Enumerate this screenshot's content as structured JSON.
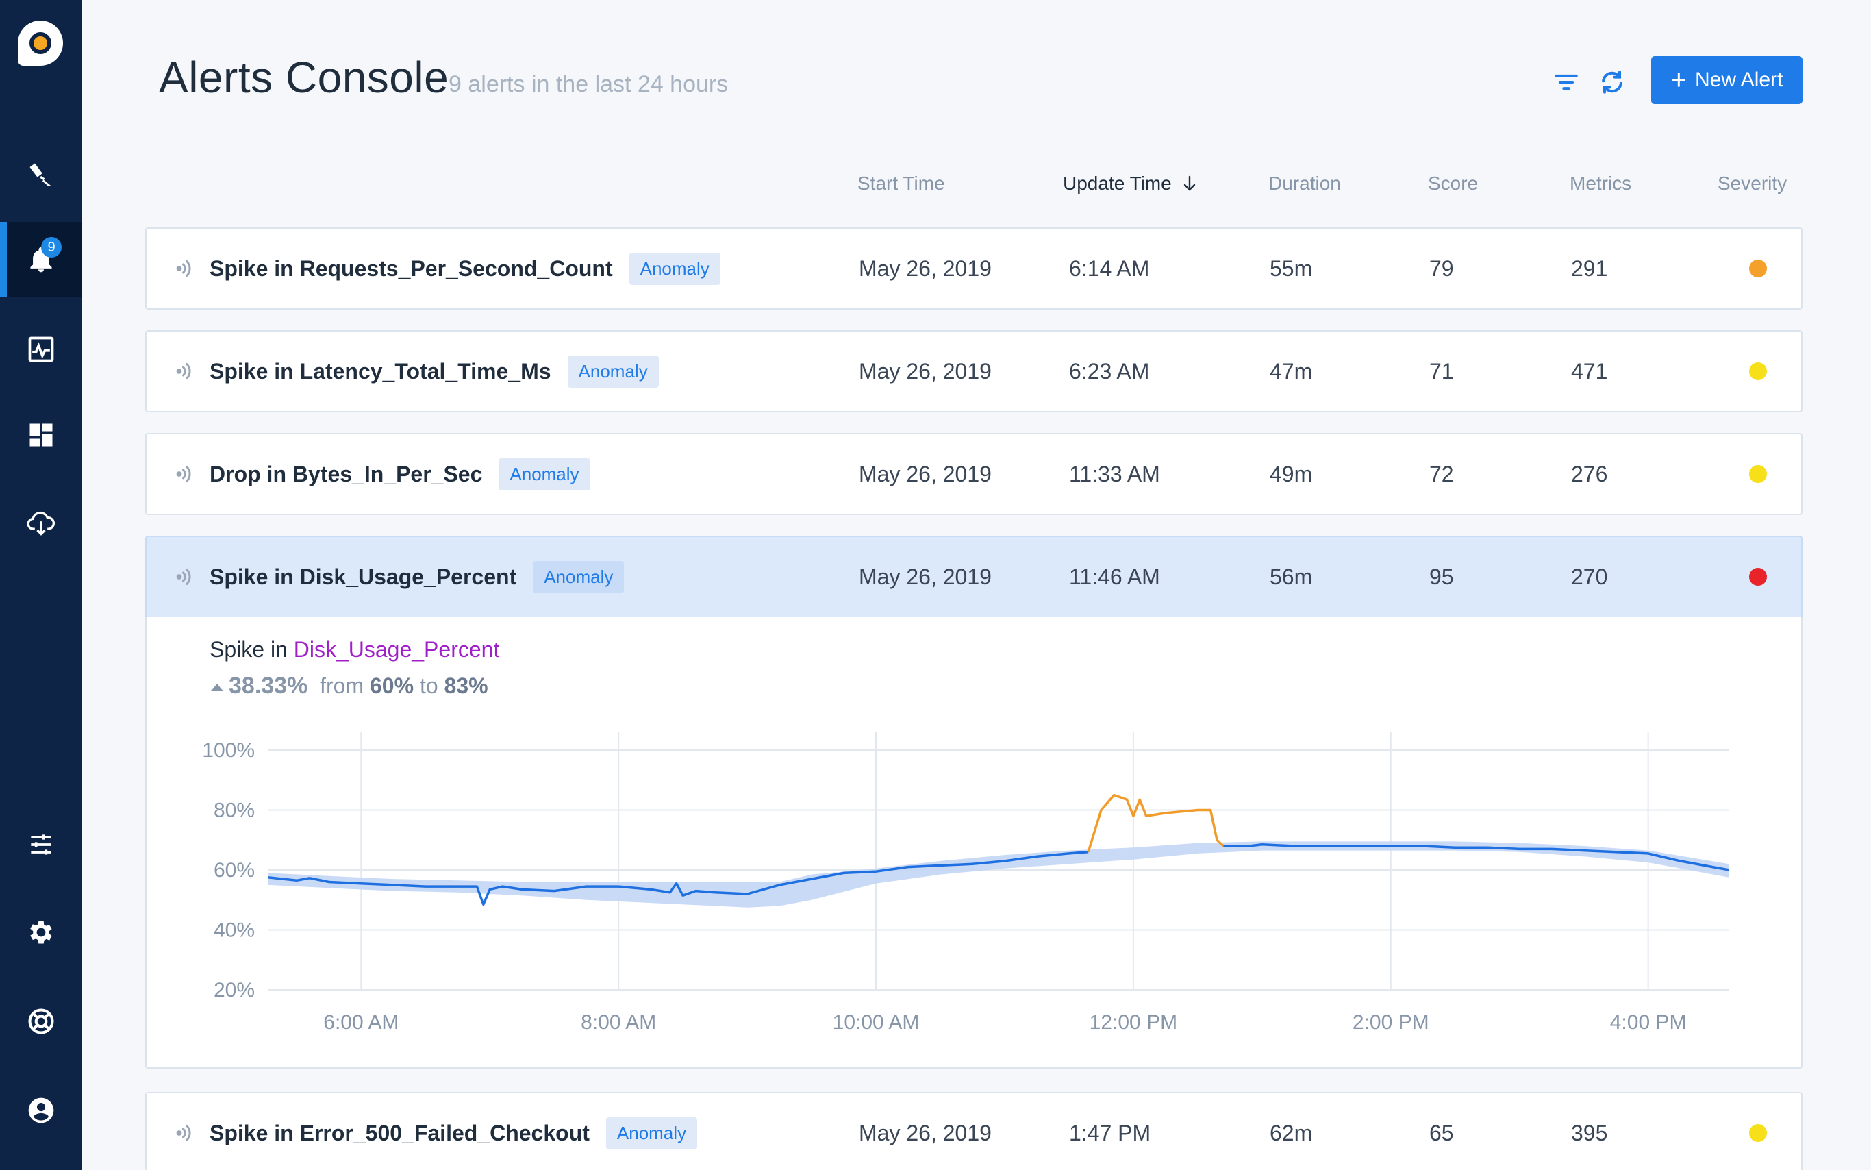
{
  "app": {
    "title": "Alerts Console",
    "subtitle": "9 alerts in the last 24 hours",
    "new_alert_label": "New Alert",
    "accent_color": "#1e7be7"
  },
  "sidebar": {
    "badge_count": "9",
    "items": [
      {
        "name": "explore",
        "icon": "telescope-icon"
      },
      {
        "name": "alerts",
        "icon": "bell-icon",
        "active": true
      },
      {
        "name": "metrics",
        "icon": "chart-icon"
      },
      {
        "name": "dashboards",
        "icon": "dashboard-icon"
      },
      {
        "name": "data-sources",
        "icon": "cloud-download-icon"
      },
      {
        "name": "controls",
        "icon": "sliders-icon"
      },
      {
        "name": "settings",
        "icon": "gear-icon"
      },
      {
        "name": "support",
        "icon": "lifebuoy-icon"
      },
      {
        "name": "profile",
        "icon": "user-icon"
      }
    ]
  },
  "columns": {
    "start_time": "Start Time",
    "update_time": "Update Time",
    "duration": "Duration",
    "score": "Score",
    "metrics": "Metrics",
    "severity": "Severity"
  },
  "alerts": [
    {
      "name": "Spike in Requests_Per_Second_Count",
      "badge": "Anomaly",
      "start": "May 26, 2019",
      "update": "6:14 AM",
      "duration": "55m",
      "score": "79",
      "metrics": "291",
      "severity": "#f5a02a"
    },
    {
      "name": "Spike in Latency_Total_Time_Ms",
      "badge": "Anomaly",
      "start": "May 26, 2019",
      "update": "6:23 AM",
      "duration": "47m",
      "score": "71",
      "metrics": "471",
      "severity": "#f7e01a"
    },
    {
      "name": "Drop in Bytes_In_Per_Sec",
      "badge": "Anomaly",
      "start": "May 26, 2019",
      "update": "11:33 AM",
      "duration": "49m",
      "score": "72",
      "metrics": "276",
      "severity": "#f7e01a"
    },
    {
      "name": "Spike in Disk_Usage_Percent",
      "badge": "Anomaly",
      "start": "May 26, 2019",
      "update": "11:46 AM",
      "duration": "56m",
      "score": "95",
      "metrics": "270",
      "severity": "#e8232a",
      "selected": true
    },
    {
      "name": "Spike in Error_500_Failed_Checkout",
      "badge": "Anomaly",
      "start": "May 26, 2019",
      "update": "1:47 PM",
      "duration": "62m",
      "score": "65",
      "metrics": "395",
      "severity": "#f7e01a"
    }
  ],
  "detail": {
    "prefix": "Spike in",
    "metric": "Disk_Usage_Percent",
    "change_pct": "38.33%",
    "from_word": "from",
    "from_val": "60%",
    "to_word": "to",
    "to_val": "83%"
  },
  "chart_data": {
    "type": "line",
    "y_ticks": [
      "100%",
      "80%",
      "60%",
      "40%",
      "20%"
    ],
    "x_ticks": [
      "6:00 AM",
      "8:00 AM",
      "10:00 AM",
      "12:00 PM",
      "2:00 PM",
      "4:00 PM"
    ],
    "ylim": [
      20,
      100
    ],
    "xlim_hours": [
      5.28,
      16.63
    ],
    "grid": true,
    "colors": {
      "normal": "#1e6fe0",
      "band": "#c3d6f5",
      "anomaly": "#f09b2a"
    },
    "series": [
      {
        "role": "normal",
        "x": [
          5.28,
          5.5,
          5.6,
          5.75,
          6.0,
          6.25,
          6.5,
          6.75,
          6.9,
          6.95,
          7.0,
          7.1,
          7.25,
          7.5,
          7.75,
          8.0,
          8.25,
          8.4,
          8.45,
          8.5,
          8.6,
          8.75,
          9.0,
          9.25,
          9.5,
          9.75,
          10.0,
          10.25,
          10.5,
          10.75,
          11.0,
          11.25,
          11.5,
          11.65
        ],
        "y": [
          57.5,
          56.5,
          57.3,
          56,
          55.5,
          55,
          54.5,
          54.5,
          54.5,
          48.5,
          53.5,
          54.5,
          53.5,
          53,
          54.5,
          54.5,
          53.5,
          52.5,
          55.5,
          51.5,
          53,
          52.5,
          52,
          55,
          57,
          59,
          59.5,
          61,
          61.5,
          62,
          63,
          64.5,
          65.5,
          66
        ]
      },
      {
        "role": "anomaly",
        "x": [
          11.65,
          11.75,
          11.85,
          11.95,
          12.0,
          12.05,
          12.1,
          12.25,
          12.5,
          12.6,
          12.65,
          12.7
        ],
        "y": [
          66,
          80,
          85,
          83.5,
          78,
          83.5,
          78,
          79,
          80,
          80,
          70,
          68
        ]
      },
      {
        "role": "normal",
        "x": [
          12.7,
          12.9,
          13.0,
          13.25,
          13.5,
          13.75,
          14.0,
          14.25,
          14.5,
          14.75,
          15.0,
          15.25,
          15.5,
          15.75,
          16.0,
          16.25,
          16.5,
          16.63
        ],
        "y": [
          68,
          68,
          68.5,
          68,
          68,
          68,
          68,
          68,
          67.5,
          67.5,
          67,
          67,
          66.5,
          66,
          65.5,
          63,
          61,
          60
        ]
      }
    ],
    "band": {
      "x": [
        5.28,
        5.75,
        6.25,
        6.75,
        7.25,
        7.75,
        8.25,
        8.75,
        9.0,
        9.25,
        9.5,
        10.0,
        10.5,
        11.0,
        11.5,
        12.0,
        12.5,
        13.0,
        13.5,
        14.0,
        14.5,
        15.0,
        15.5,
        16.0,
        16.63
      ],
      "upper": [
        59,
        58,
        57,
        56.5,
        56,
        56,
        56,
        56,
        56,
        56,
        58.5,
        60.5,
        63,
        65,
        66.5,
        67.5,
        69,
        69.5,
        69.5,
        69.5,
        69.5,
        69,
        68,
        66.5,
        62
      ],
      "lower": [
        55,
        54,
        53,
        52.5,
        51.5,
        50,
        49,
        48,
        47.5,
        48,
        50,
        55.5,
        58.5,
        60.5,
        62,
        63.5,
        65.5,
        66.5,
        66.5,
        66.5,
        66.5,
        66,
        64.5,
        62.5,
        57.5
      ]
    }
  }
}
